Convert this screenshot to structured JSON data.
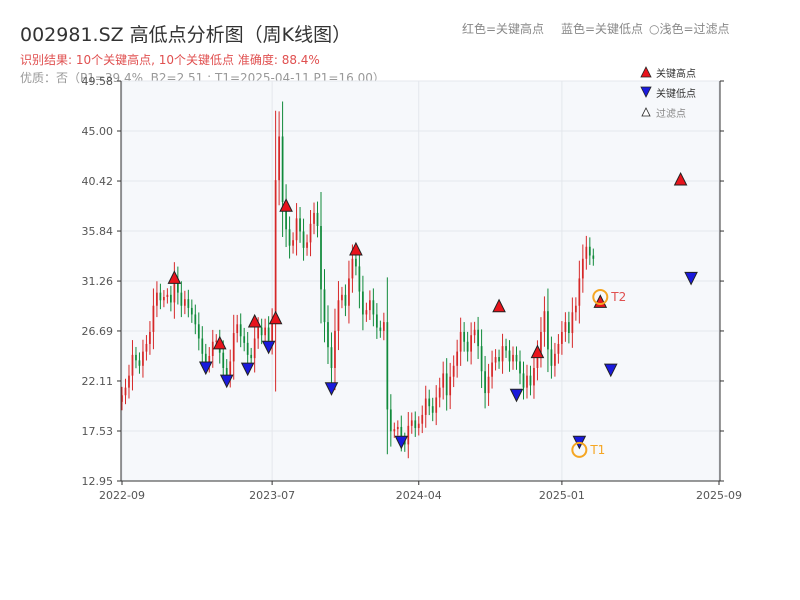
{
  "header": {
    "title": "002981.SZ 高低点分析图（周K线图）",
    "legend_high": "红色=关键高点",
    "legend_low": "蓝色=关键低点",
    "legend_filtered": "○浅色=过滤点",
    "result_line": "识别结果: 10个关键高点, 10个关键低点  准确度: 88.4%",
    "quality_line": "优质：否（P1=39.4%, B2=2.51 ; T1=2025-04-11 P1=16.00）"
  },
  "legend_box": {
    "high": "关键高点",
    "low": "关键低点",
    "filtered": "过滤点"
  },
  "colors": {
    "up": "#d62828",
    "down": "#108a3a",
    "high_marker": "#e8141c",
    "low_marker": "#1a1adc",
    "t_marker": "#f5a623",
    "t2_label": "#e05050",
    "t1_label": "#f5a623",
    "plot_bg": "#f6f8fb",
    "grid": "#e4e7ec"
  },
  "chart_data": {
    "type": "candlestick",
    "title": "002981.SZ 高低点分析图（周K线图）",
    "ylim": [
      12.95,
      49.58
    ],
    "y_ticks": [
      "12.95",
      "17.53",
      "22.11",
      "26.69",
      "31.26",
      "35.84",
      "40.42",
      "45.00",
      "49.58"
    ],
    "x_ticks": [
      {
        "label": "2022-09",
        "index": 0
      },
      {
        "label": "2023-07",
        "index": 43
      },
      {
        "label": "2024-04",
        "index": 85
      },
      {
        "label": "2025-01",
        "index": 126
      },
      {
        "label": "2025-09",
        "index": 171
      }
    ],
    "weekly_close": [
      20.8,
      21.5,
      22.6,
      24.5,
      24.0,
      23.5,
      24.8,
      25.5,
      26.6,
      29.0,
      30.2,
      29.5,
      29.8,
      30.0,
      29.3,
      31.5,
      30.2,
      29.0,
      29.6,
      28.8,
      28.2,
      27.3,
      26.0,
      24.6,
      23.7,
      24.4,
      25.7,
      25.8,
      24.7,
      23.3,
      22.6,
      23.9,
      26.5,
      27.3,
      26.2,
      25.6,
      24.5,
      24.2,
      26.0,
      27.0,
      26.3,
      27.0,
      25.8,
      27.5,
      40.5,
      44.5,
      38.5,
      36.0,
      34.5,
      35.0,
      37.0,
      35.8,
      34.3,
      34.8,
      36.5,
      37.5,
      36.3,
      30.5,
      27.5,
      25.2,
      23.3,
      26.7,
      29.5,
      30.0,
      29.0,
      31.5,
      33.3,
      32.6,
      30.3,
      28.2,
      28.6,
      29.5,
      28.2,
      27.0,
      26.7,
      27.5,
      19.5,
      17.5,
      17.7,
      17.9,
      16.7,
      16.3,
      18.0,
      18.5,
      17.8,
      18.2,
      19.0,
      20.5,
      19.8,
      19.2,
      20.6,
      21.5,
      22.8,
      20.8,
      22.5,
      23.5,
      24.8,
      26.6,
      25.7,
      24.8,
      26.3,
      26.8,
      25.3,
      23.0,
      21.0,
      22.5,
      23.8,
      24.3,
      23.9,
      25.3,
      24.9,
      23.9,
      24.5,
      23.9,
      22.8,
      21.5,
      22.6,
      21.7,
      23.3,
      24.7,
      26.6,
      28.5,
      25.0,
      23.5,
      24.6,
      25.5,
      26.6,
      27.5,
      26.5,
      28.4,
      29.0,
      31.5,
      33.3,
      34.4,
      33.6,
      33.3
    ],
    "key_highs": [
      {
        "index": 15,
        "value": 31.6
      },
      {
        "index": 28,
        "value": 25.6
      },
      {
        "index": 38,
        "value": 27.6
      },
      {
        "index": 44,
        "value": 27.9
      },
      {
        "index": 47,
        "value": 38.2
      },
      {
        "index": 67,
        "value": 34.2
      },
      {
        "index": 108,
        "value": 29.0
      },
      {
        "index": 119,
        "value": 24.8
      },
      {
        "index": 137,
        "value": 29.4
      },
      {
        "index": 160,
        "value": 40.6
      }
    ],
    "key_lows": [
      {
        "index": 24,
        "value": 23.3
      },
      {
        "index": 30,
        "value": 22.1
      },
      {
        "index": 36,
        "value": 23.2
      },
      {
        "index": 42,
        "value": 25.2
      },
      {
        "index": 60,
        "value": 21.4
      },
      {
        "index": 80,
        "value": 16.5
      },
      {
        "index": 113,
        "value": 20.8
      },
      {
        "index": 131,
        "value": 16.5
      },
      {
        "index": 140,
        "value": 23.1
      },
      {
        "index": 163,
        "value": 31.5
      }
    ],
    "t_points": [
      {
        "label": "T2",
        "index": 137,
        "value": 29.8
      },
      {
        "label": "T1",
        "index": 131,
        "value": 15.8
      }
    ]
  }
}
